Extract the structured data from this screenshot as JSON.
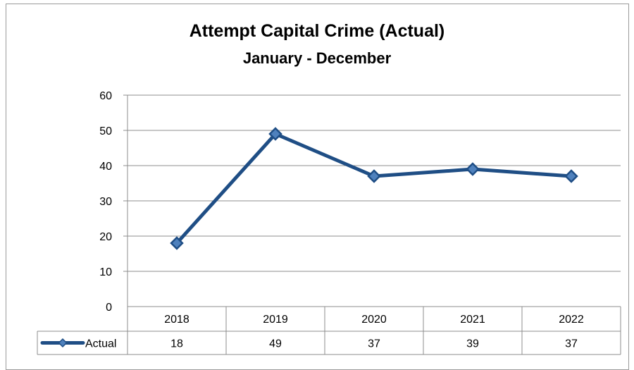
{
  "chart_data": {
    "type": "line",
    "title": "Attempt Capital Crime (Actual)",
    "subtitle": "January - December",
    "categories": [
      "2018",
      "2019",
      "2020",
      "2021",
      "2022"
    ],
    "series": [
      {
        "name": "Actual",
        "values": [
          18,
          49,
          37,
          39,
          37
        ],
        "color": "#1f4e85"
      }
    ],
    "y_ticks": [
      "0",
      "10",
      "20",
      "30",
      "40",
      "50",
      "60"
    ],
    "ylim": [
      0,
      60
    ],
    "grid": true,
    "legend": "data-table",
    "data_table": true
  }
}
